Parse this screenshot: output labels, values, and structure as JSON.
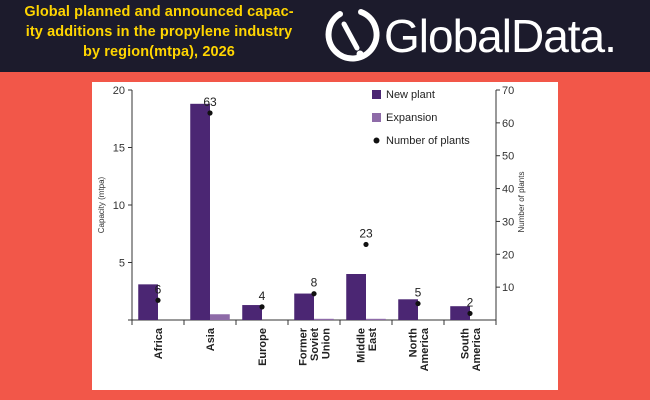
{
  "header": {
    "title_lines": [
      "Global planned and announced capac-",
      "ity additions in the propylene industry",
      "by region(mtpa), 2026"
    ],
    "logo_text": "GlobalData.",
    "colors": {
      "bar": "#1c1b2c",
      "title": "#ffd500",
      "page": "#f25749"
    }
  },
  "chart_data": {
    "type": "bar",
    "title": "Global planned and announced capacity additions in the propylene industry by region(mtpa), 2026",
    "categories": [
      [
        "Africa"
      ],
      [
        "Asia"
      ],
      [
        "Europe"
      ],
      [
        "Former",
        "Soviet",
        "Union"
      ],
      [
        "Middle",
        "East"
      ],
      [
        "North",
        "America"
      ],
      [
        "South",
        "America"
      ]
    ],
    "series": [
      {
        "name": "New plant",
        "color": "#4b2673",
        "axis": "left",
        "values": [
          3.1,
          18.8,
          1.3,
          2.3,
          4.0,
          1.8,
          1.2
        ]
      },
      {
        "name": "Expansion",
        "color": "#8e6ba8",
        "axis": "left",
        "values": [
          0,
          0.5,
          0,
          0.1,
          0.1,
          0,
          0
        ]
      },
      {
        "name": "Number of plants",
        "color": "#111111",
        "axis": "right",
        "type": "scatter",
        "values": [
          6,
          63,
          4,
          8,
          23,
          5,
          2
        ]
      }
    ],
    "data_labels": [
      "6",
      "63",
      "4",
      "8",
      "23",
      "5",
      "2"
    ],
    "ylabel": "Capacity (mtpa)",
    "ylabel_right": "Number of plants",
    "ylim": [
      0,
      20
    ],
    "yticks": [
      0,
      5,
      10,
      15,
      20
    ],
    "ytick_labels": [
      "",
      "5",
      "10",
      "15",
      "20"
    ],
    "ylim_right": [
      0,
      70
    ],
    "yticks_right": [
      10,
      20,
      30,
      40,
      50,
      60,
      70
    ],
    "legend_position": "top-right",
    "grid": false
  }
}
